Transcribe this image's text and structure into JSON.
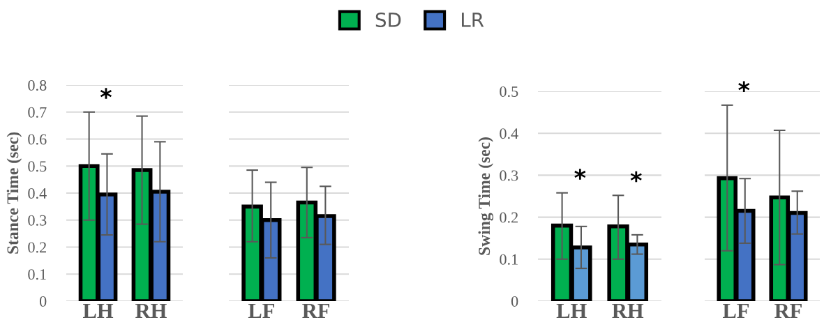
{
  "chart_data": [
    {
      "type": "bar",
      "ylabel": "Stance Time (sec)",
      "categories": [
        "LH",
        "RH"
      ],
      "ylim": [
        0,
        0.8
      ],
      "yticks": [
        0,
        0.1,
        0.2,
        0.3,
        0.4,
        0.5,
        0.6,
        0.7,
        0.8
      ],
      "grid": "y",
      "legend": "top",
      "series": [
        {
          "name": "SD",
          "color": "#00b050",
          "values": [
            0.5,
            0.485
          ],
          "errors": [
            [
              0.3,
              0.7
            ],
            [
              0.285,
              0.685
            ]
          ]
        },
        {
          "name": "LR",
          "color": "#4472c4",
          "values": [
            0.395,
            0.405
          ],
          "errors": [
            [
              0.245,
              0.545
            ],
            [
              0.22,
              0.59
            ]
          ]
        }
      ],
      "annotations": [
        "*"
      ]
    },
    {
      "type": "bar",
      "categories": [
        "LF",
        "RF"
      ],
      "ylim": [
        0,
        0.8
      ],
      "yticks": [
        0,
        0.1,
        0.2,
        0.3,
        0.4,
        0.5,
        0.6,
        0.7,
        0.8
      ],
      "grid": "y",
      "tick_labels": "x",
      "series": [
        {
          "name": "SD",
          "color": "#00b050",
          "values": [
            0.35,
            0.365
          ],
          "errors": [
            [
              0.22,
              0.485
            ],
            [
              0.235,
              0.495
            ]
          ]
        },
        {
          "name": "LR",
          "color": "#4472c4",
          "values": [
            0.3,
            0.315
          ],
          "errors": [
            [
              0.16,
              0.44
            ],
            [
              0.21,
              0.425
            ]
          ]
        }
      ]
    },
    {
      "type": "bar",
      "ylabel": "Swing Time (sec)",
      "categories": [
        "LH",
        "RH"
      ],
      "ylim": [
        0,
        0.5
      ],
      "yticks": [
        0,
        0.1,
        0.2,
        0.3,
        0.4,
        0.5
      ],
      "grid": "y",
      "series": [
        {
          "name": "SD",
          "color": "#00b050",
          "values": [
            0.18,
            0.178
          ],
          "errors": [
            [
              0.1,
              0.258
            ],
            [
              0.1,
              0.252
            ]
          ]
        },
        {
          "color": "#5b9bd5",
          "values": [
            0.128,
            0.135
          ],
          "errors": [
            [
              0.078,
              0.178
            ],
            [
              0.112,
              0.158
            ]
          ]
        }
      ],
      "annotations": [
        "*",
        "*"
      ]
    },
    {
      "type": "bar",
      "categories": [
        "LF",
        "RF"
      ],
      "ylim": [
        0,
        0.5
      ],
      "yticks": [
        0,
        0.1,
        0.2,
        0.3,
        0.4,
        0.5
      ],
      "grid": "y",
      "tick_labels": "x",
      "series": [
        {
          "name": "SD",
          "color": "#00b050",
          "values": [
            0.293,
            0.247
          ],
          "errors": [
            [
              0.12,
              0.467
            ],
            [
              0.087,
              0.407
            ]
          ]
        },
        {
          "name": "LR",
          "color": "#4472c4",
          "values": [
            0.215,
            0.21
          ],
          "errors": [
            [
              0.138,
              0.292
            ],
            [
              0.16,
              0.262
            ]
          ]
        }
      ],
      "annotations": [
        "*"
      ]
    }
  ]
}
